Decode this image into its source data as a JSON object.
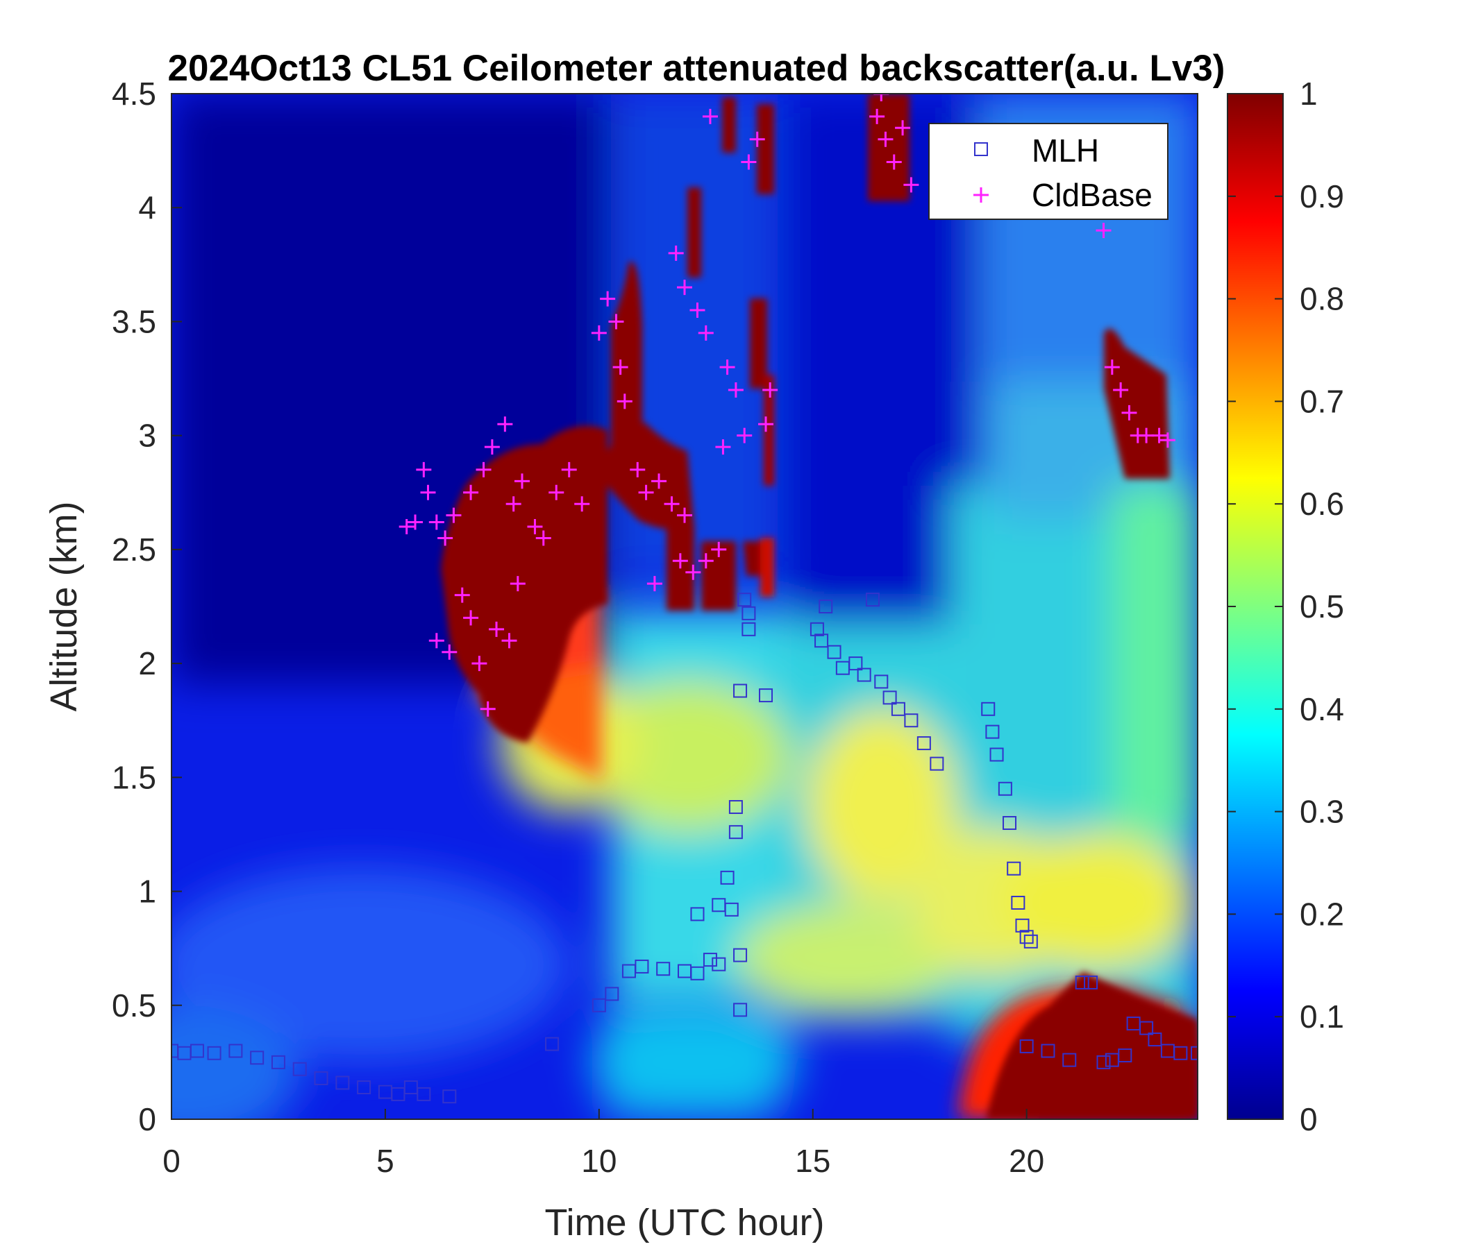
{
  "chart_data": {
    "type": "heatmap",
    "title": "2024Oct13 CL51 Ceilometer attenuated backscatter(a.u. Lv3)",
    "xlabel": "Time (UTC hour)",
    "ylabel": "Altitude (km)",
    "xlim": [
      0,
      24
    ],
    "ylim": [
      0,
      4.5
    ],
    "x_ticks": [
      "0",
      "5",
      "10",
      "15",
      "20"
    ],
    "y_ticks": [
      "0",
      "0.5",
      "1",
      "1.5",
      "2",
      "2.5",
      "3",
      "3.5",
      "4",
      "4.5"
    ],
    "colorbar": {
      "colormap": "jet",
      "range": [
        0,
        1
      ],
      "ticks": [
        "0",
        "0.1",
        "0.2",
        "0.3",
        "0.4",
        "0.5",
        "0.6",
        "0.7",
        "0.8",
        "0.9",
        "1"
      ]
    },
    "legend": {
      "position": "top-right",
      "entries": [
        {
          "label": "MLH",
          "marker": "square",
          "color": "#3333cc"
        },
        {
          "label": "CldBase",
          "marker": "plus",
          "color": "#ff22ff"
        }
      ]
    },
    "series": [
      {
        "name": "MLH",
        "marker": "square",
        "points": [
          [
            0.0,
            0.3
          ],
          [
            0.3,
            0.29
          ],
          [
            0.6,
            0.3
          ],
          [
            1.0,
            0.29
          ],
          [
            1.5,
            0.3
          ],
          [
            2.0,
            0.27
          ],
          [
            2.5,
            0.25
          ],
          [
            3.0,
            0.22
          ],
          [
            3.5,
            0.18
          ],
          [
            4.0,
            0.16
          ],
          [
            4.5,
            0.14
          ],
          [
            5.0,
            0.12
          ],
          [
            5.3,
            0.11
          ],
          [
            5.6,
            0.14
          ],
          [
            5.9,
            0.11
          ],
          [
            6.5,
            0.1
          ],
          [
            8.9,
            0.33
          ],
          [
            10.0,
            0.5
          ],
          [
            10.3,
            0.55
          ],
          [
            10.7,
            0.65
          ],
          [
            11.0,
            0.67
          ],
          [
            11.5,
            0.66
          ],
          [
            12.0,
            0.65
          ],
          [
            12.3,
            0.64
          ],
          [
            12.6,
            0.7
          ],
          [
            12.8,
            0.68
          ],
          [
            12.3,
            0.9
          ],
          [
            12.8,
            0.94
          ],
          [
            13.0,
            1.06
          ],
          [
            13.1,
            0.92
          ],
          [
            13.2,
            1.37
          ],
          [
            13.2,
            1.26
          ],
          [
            13.3,
            0.72
          ],
          [
            13.3,
            0.48
          ],
          [
            13.3,
            1.88
          ],
          [
            13.9,
            1.86
          ],
          [
            13.4,
            2.28
          ],
          [
            13.5,
            2.22
          ],
          [
            13.5,
            2.15
          ],
          [
            15.1,
            2.15
          ],
          [
            15.2,
            2.1
          ],
          [
            15.3,
            2.25
          ],
          [
            15.5,
            2.05
          ],
          [
            15.7,
            1.98
          ],
          [
            16.0,
            2.0
          ],
          [
            16.2,
            1.95
          ],
          [
            16.4,
            2.28
          ],
          [
            16.6,
            1.92
          ],
          [
            16.8,
            1.85
          ],
          [
            17.0,
            1.8
          ],
          [
            17.3,
            1.75
          ],
          [
            17.6,
            1.65
          ],
          [
            17.9,
            1.56
          ],
          [
            19.1,
            1.8
          ],
          [
            19.2,
            1.7
          ],
          [
            19.3,
            1.6
          ],
          [
            19.5,
            1.45
          ],
          [
            19.6,
            1.3
          ],
          [
            19.7,
            1.1
          ],
          [
            19.8,
            0.95
          ],
          [
            19.9,
            0.85
          ],
          [
            20.0,
            0.8
          ],
          [
            20.1,
            0.78
          ],
          [
            20.0,
            0.32
          ],
          [
            20.5,
            0.3
          ],
          [
            21.0,
            0.26
          ],
          [
            21.3,
            0.6
          ],
          [
            21.5,
            0.6
          ],
          [
            21.8,
            0.25
          ],
          [
            22.0,
            0.26
          ],
          [
            22.3,
            0.28
          ],
          [
            22.5,
            0.42
          ],
          [
            22.8,
            0.4
          ],
          [
            23.0,
            0.35
          ],
          [
            23.3,
            0.3
          ],
          [
            23.6,
            0.29
          ],
          [
            24.0,
            0.29
          ]
        ]
      },
      {
        "name": "CldBase",
        "marker": "plus",
        "points": [
          [
            5.5,
            2.6
          ],
          [
            5.7,
            2.62
          ],
          [
            5.9,
            2.85
          ],
          [
            6.0,
            2.75
          ],
          [
            6.2,
            2.62
          ],
          [
            6.4,
            2.55
          ],
          [
            6.6,
            2.65
          ],
          [
            6.2,
            2.1
          ],
          [
            6.5,
            2.05
          ],
          [
            6.8,
            2.3
          ],
          [
            7.0,
            2.2
          ],
          [
            7.2,
            2.0
          ],
          [
            7.4,
            1.8
          ],
          [
            7.0,
            2.75
          ],
          [
            7.3,
            2.85
          ],
          [
            7.5,
            2.95
          ],
          [
            7.8,
            3.05
          ],
          [
            8.0,
            2.7
          ],
          [
            8.2,
            2.8
          ],
          [
            8.5,
            2.6
          ],
          [
            8.7,
            2.55
          ],
          [
            7.6,
            2.15
          ],
          [
            7.9,
            2.1
          ],
          [
            8.1,
            2.35
          ],
          [
            9.0,
            2.75
          ],
          [
            9.3,
            2.85
          ],
          [
            9.6,
            2.7
          ],
          [
            10.0,
            3.45
          ],
          [
            10.2,
            3.6
          ],
          [
            10.4,
            3.5
          ],
          [
            10.5,
            3.3
          ],
          [
            10.6,
            3.15
          ],
          [
            10.9,
            2.85
          ],
          [
            11.1,
            2.75
          ],
          [
            11.4,
            2.8
          ],
          [
            11.7,
            2.7
          ],
          [
            12.0,
            2.65
          ],
          [
            12.2,
            2.4
          ],
          [
            12.5,
            2.45
          ],
          [
            12.8,
            2.5
          ],
          [
            11.3,
            2.35
          ],
          [
            11.9,
            2.45
          ],
          [
            11.8,
            3.8
          ],
          [
            12.0,
            3.65
          ],
          [
            12.3,
            3.55
          ],
          [
            12.5,
            3.45
          ],
          [
            12.6,
            4.4
          ],
          [
            13.0,
            3.3
          ],
          [
            13.2,
            3.2
          ],
          [
            13.4,
            3.0
          ],
          [
            13.5,
            4.2
          ],
          [
            13.7,
            4.3
          ],
          [
            13.9,
            3.05
          ],
          [
            14.0,
            3.2
          ],
          [
            12.9,
            2.95
          ],
          [
            16.5,
            4.4
          ],
          [
            16.7,
            4.3
          ],
          [
            16.9,
            4.2
          ],
          [
            17.1,
            4.35
          ],
          [
            17.3,
            4.1
          ],
          [
            16.6,
            4.5
          ],
          [
            21.8,
            3.9
          ],
          [
            22.0,
            3.3
          ],
          [
            22.2,
            3.2
          ],
          [
            22.4,
            3.1
          ],
          [
            22.6,
            3.0
          ],
          [
            22.8,
            3.0
          ],
          [
            23.1,
            3.0
          ],
          [
            23.3,
            2.98
          ]
        ]
      }
    ]
  }
}
